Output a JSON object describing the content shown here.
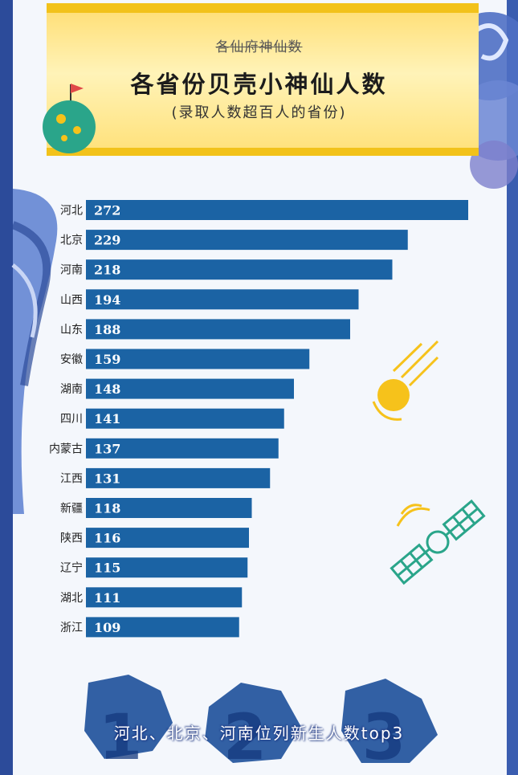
{
  "header": {
    "strike_title": "各仙府神仙数",
    "title": "各省份贝壳小神仙人数",
    "note": "(录取人数超百人的省份)"
  },
  "chart_data": {
    "type": "bar",
    "orientation": "horizontal",
    "title": "各省份贝壳小神仙人数",
    "categories": [
      "河北",
      "北京",
      "河南",
      "山西",
      "山东",
      "安徽",
      "湖南",
      "四川",
      "内蒙古",
      "江西",
      "新疆",
      "陕西",
      "辽宁",
      "湖北",
      "浙江"
    ],
    "values": [
      272,
      229,
      218,
      194,
      188,
      159,
      148,
      141,
      137,
      131,
      118,
      116,
      115,
      111,
      109
    ],
    "xlim": [
      0,
      272
    ],
    "xlabel": "",
    "ylabel": "",
    "grid": false,
    "bar_color": "#1b63a4",
    "label_color": "#ffffff"
  },
  "footer": {
    "caption": "河北、北京、河南位列新生人数top3",
    "rank_numbers": [
      "1",
      "2",
      "3"
    ]
  },
  "colors": {
    "frame": "#2c4b9a",
    "header_band": "#ffe07a",
    "header_border": "#f2c21a",
    "accent_yellow": "#f6c21b",
    "accent_teal": "#2aa58a",
    "map_blue": "#1d4f9a"
  },
  "icons": [
    "planet-flag-icon",
    "meteor-icon",
    "satellite-icon",
    "cloud-swirl-icon"
  ]
}
